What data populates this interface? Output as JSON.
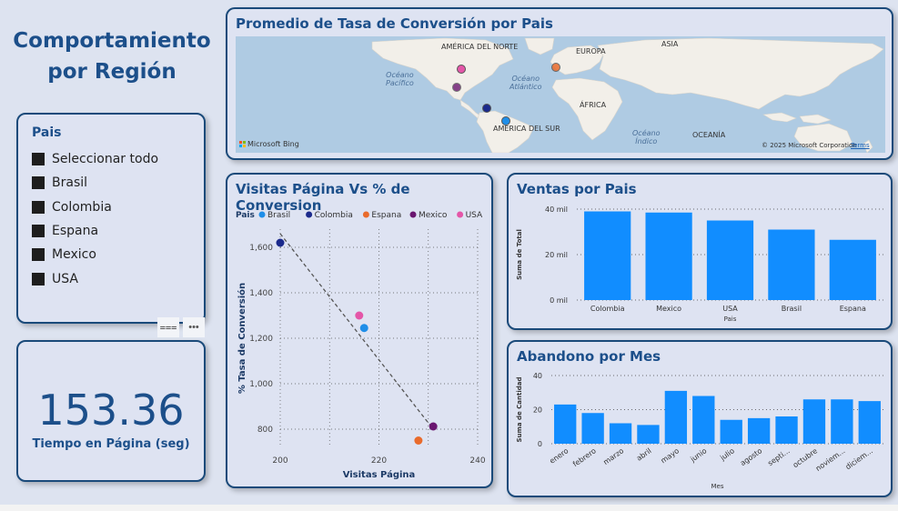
{
  "title": "Comportamiento por Región",
  "slicer": {
    "title": "Pais",
    "items": [
      {
        "label": "Seleccionar todo"
      },
      {
        "label": "Brasil"
      },
      {
        "label": "Colombia"
      },
      {
        "label": "Espana"
      },
      {
        "label": "Mexico"
      },
      {
        "label": "USA"
      }
    ],
    "filter_icon": "filter-icon",
    "more_icon": "more-options-icon"
  },
  "kpi": {
    "value": "153.36",
    "label": "Tiempo en Página (seg)"
  },
  "map": {
    "title": "Promedio de Tasa de Conversión por Pais",
    "labels": {
      "north_america": "AMÉRICA DEL NORTE",
      "europe": "EUROPA",
      "asia": "ASIA",
      "pacific": "Océano\nPacífico",
      "atlantic": "Océano\nAtlántico",
      "africa": "ÁFRICA",
      "south_america": "AMÉRICA DEL SUR",
      "indian": "Océano\nÍndico",
      "oceania": "OCEANÍA"
    },
    "attribution": "Microsoft Bing",
    "copyright": "© 2025 Microsoft Corporation",
    "terms": "Terms"
  },
  "colors": {
    "Brasil": "#1f8ee8",
    "Colombia": "#1b2a8c",
    "Espana": "#e96b2c",
    "Mexico": "#6a1670",
    "USA": "#e456a8",
    "bar": "#118dff"
  },
  "scatter": {
    "title": "Visitas Página Vs % de Conversion"
  },
  "ventas": {
    "title": "Ventas por Pais"
  },
  "abandono": {
    "title": "Abandono por Mes"
  },
  "chart_data": [
    {
      "type": "scatter",
      "title": "Visitas Página Vs % de Conversion",
      "xlabel": "Visitas Página",
      "ylabel": "% Tasa de Conversión",
      "legend_title": "Pais",
      "xlim": [
        200,
        240
      ],
      "ylim": [
        720,
        1680
      ],
      "xticks": [
        "200",
        "220",
        "240"
      ],
      "yticks": [
        "800",
        "1,000",
        "1,200",
        "1,400",
        "1,600"
      ],
      "trendline": {
        "from": [
          200,
          1660
        ],
        "to": [
          231,
          800
        ]
      },
      "series": [
        {
          "name": "Brasil",
          "x": [
            217
          ],
          "y": [
            1245
          ]
        },
        {
          "name": "Colombia",
          "x": [
            200
          ],
          "y": [
            1620
          ]
        },
        {
          "name": "Espana",
          "x": [
            228
          ],
          "y": [
            750
          ]
        },
        {
          "name": "Mexico",
          "x": [
            231
          ],
          "y": [
            812
          ]
        },
        {
          "name": "USA",
          "x": [
            216
          ],
          "y": [
            1300
          ]
        }
      ]
    },
    {
      "type": "bar",
      "title": "Ventas por Pais",
      "xlabel": "Pais",
      "ylabel": "Suma de Total",
      "categories": [
        "Colombia",
        "Mexico",
        "USA",
        "Brasil",
        "Espana"
      ],
      "values": [
        39000,
        38500,
        35000,
        31000,
        26500
      ],
      "ylim": [
        0,
        40000
      ],
      "yticks": [
        "0 mil",
        "20 mil",
        "40 mil"
      ]
    },
    {
      "type": "bar",
      "title": "Abandono por Mes",
      "xlabel": "Mes",
      "ylabel": "Suma de Cantidad",
      "categories": [
        "enero",
        "febrero",
        "marzo",
        "abril",
        "mayo",
        "junio",
        "julio",
        "agosto",
        "septi...",
        "octubre",
        "noviem...",
        "diciem..."
      ],
      "values": [
        23,
        18,
        12,
        11,
        31,
        28,
        14,
        15,
        16,
        26,
        26,
        25
      ],
      "ylim": [
        0,
        40
      ],
      "yticks": [
        "0",
        "20",
        "40"
      ]
    }
  ]
}
